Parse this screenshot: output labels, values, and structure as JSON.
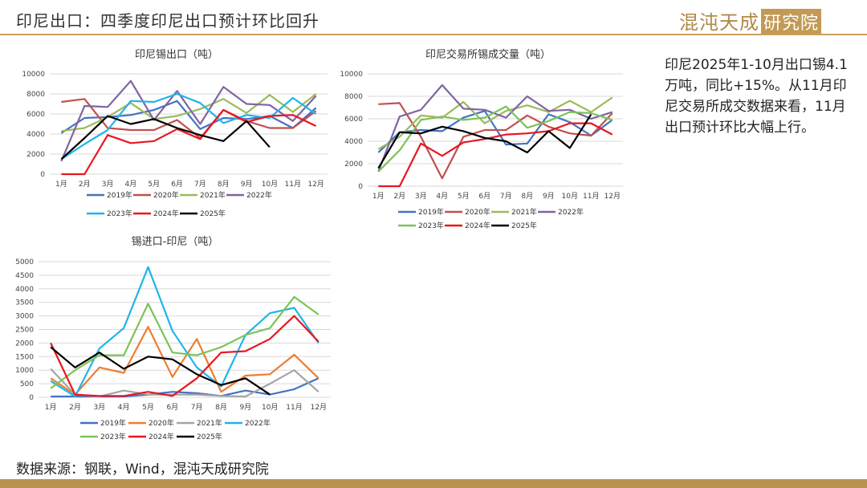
{
  "header": {
    "title": "印尼出口：四季度印尼出口预计环比回升",
    "logo_main": "混沌天成",
    "logo_box": "研究院"
  },
  "note": {
    "text": "印尼2025年1-10月出口锡4.1万吨，同比+15%。从11月印尼交易所成交数据来看，11月出口预计环比大幅上行。"
  },
  "source": "数据来源：钢联，Wind，混沌天成研究院",
  "colors": {
    "2019年": "#4472c4",
    "2020年": "#c0504d",
    "2021年": "#9bbb59",
    "2022年": "#8064a2",
    "2023年": "#1fb5e8",
    "2024年": "#e8171f",
    "2025年": "#000000",
    "2019年-b": "#4472c4",
    "2020年-b": "#c0504d",
    "2021年-b": "#9bbb59",
    "2022年-b": "#8064a2",
    "2023年-b": "#7cc35a",
    "2024年-b": "#e8171f",
    "2025年-b": "#000000",
    "2019年-c": "#4472c4",
    "2020年-c": "#ed7d31",
    "2021年-c": "#a5a5a5",
    "2022年-c": "#1fb5e8",
    "2023年-c": "#7cc35a",
    "2024年-c": "#e8171f",
    "2025年-c": "#000000"
  },
  "chart_data": [
    {
      "type": "line",
      "title": "印尼锡出口（吨）",
      "categories": [
        "1月",
        "2月",
        "3月",
        "4月",
        "5月",
        "6月",
        "7月",
        "8月",
        "9月",
        "10月",
        "11月",
        "12月"
      ],
      "ylim": [
        0,
        10000
      ],
      "yticks": [
        0,
        2000,
        4000,
        6000,
        8000,
        10000
      ],
      "legend": "bottom",
      "grid": true,
      "series": [
        {
          "name": "2019年",
          "color_key": "2019年",
          "values": [
            4100,
            5600,
            5700,
            5900,
            6400,
            7300,
            4500,
            5600,
            5500,
            5800,
            4600,
            6600
          ]
        },
        {
          "name": "2020年",
          "color_key": "2020年",
          "values": [
            7200,
            7500,
            4600,
            4400,
            4400,
            5400,
            3600,
            6400,
            5300,
            4600,
            4600,
            6300
          ]
        },
        {
          "name": "2021年",
          "color_key": "2021年",
          "values": [
            4300,
            4600,
            5700,
            7100,
            5500,
            5800,
            6500,
            7500,
            6100,
            7900,
            6200,
            8000
          ]
        },
        {
          "name": "2022年",
          "color_key": "2022年",
          "values": [
            1300,
            6800,
            6700,
            9300,
            5400,
            8300,
            5000,
            8700,
            7000,
            6900,
            5300,
            7800
          ]
        },
        {
          "name": "2023年",
          "color_key": "2023年",
          "values": [
            1500,
            3000,
            4400,
            7300,
            7200,
            8000,
            7100,
            5100,
            5900,
            5600,
            7600,
            6000
          ]
        },
        {
          "name": "2024年",
          "color_key": "2024年",
          "values": [
            0,
            0,
            3900,
            3100,
            3300,
            4500,
            3500,
            6400,
            5200,
            5800,
            5900,
            4800
          ]
        },
        {
          "name": "2025年",
          "color_key": "2025年",
          "values": [
            1500,
            3600,
            5800,
            5000,
            5500,
            4600,
            3900,
            3300,
            5300,
            2700,
            null,
            null
          ]
        }
      ]
    },
    {
      "type": "line",
      "title": "印尼交易所锡成交量（吨）",
      "categories": [
        "1月",
        "2月",
        "3月",
        "4月",
        "5月",
        "6月",
        "7月",
        "8月",
        "9月",
        "10月",
        "11月",
        "12月"
      ],
      "ylim": [
        0,
        10000
      ],
      "yticks": [
        0,
        2000,
        4000,
        6000,
        8000,
        10000
      ],
      "legend": "bottom",
      "grid": true,
      "series": [
        {
          "name": "2019年",
          "color_key": "2019年-b",
          "values": [
            3000,
            4800,
            5000,
            4900,
            6100,
            6700,
            3700,
            3800,
            6400,
            5700,
            4500,
            5900
          ]
        },
        {
          "name": "2020年",
          "color_key": "2020年-b",
          "values": [
            7300,
            7400,
            4400,
            700,
            4400,
            5000,
            5000,
            6300,
            5300,
            4700,
            4500,
            6500
          ]
        },
        {
          "name": "2021年",
          "color_key": "2021年-b",
          "values": [
            3300,
            4400,
            6300,
            6100,
            7500,
            5600,
            6700,
            7200,
            6600,
            7600,
            6600,
            7900
          ]
        },
        {
          "name": "2022年",
          "color_key": "2022年-b",
          "values": [
            1300,
            6200,
            6800,
            9000,
            6900,
            6800,
            6100,
            8000,
            6700,
            6800,
            6000,
            6600
          ]
        },
        {
          "name": "2023年",
          "color_key": "2023年-b",
          "values": [
            1300,
            3200,
            5900,
            6200,
            5900,
            6100,
            7100,
            5200,
            5800,
            6600,
            6500,
            5900
          ]
        },
        {
          "name": "2024年",
          "color_key": "2024年-b",
          "values": [
            0,
            0,
            3800,
            2700,
            3900,
            4200,
            4600,
            4700,
            4900,
            5600,
            5600,
            4600
          ]
        },
        {
          "name": "2025年",
          "color_key": "2025年-b",
          "values": [
            1600,
            4800,
            4700,
            5300,
            4900,
            4300,
            4000,
            3000,
            4900,
            3400,
            6400,
            null
          ]
        }
      ]
    },
    {
      "type": "line",
      "title": "锡进口-印尼（吨）",
      "categories": [
        "1月",
        "2月",
        "3月",
        "4月",
        "5月",
        "6月",
        "7月",
        "8月",
        "9月",
        "10月",
        "11月",
        "12月"
      ],
      "ylim": [
        0,
        5000
      ],
      "yticks": [
        0,
        500,
        1000,
        1500,
        2000,
        2500,
        3000,
        3500,
        4000,
        4500,
        5000
      ],
      "legend": "bottom",
      "grid": true,
      "series": [
        {
          "name": "2019年",
          "color_key": "2019年-c",
          "values": [
            30,
            30,
            30,
            30,
            100,
            200,
            150,
            50,
            250,
            100,
            300,
            700
          ]
        },
        {
          "name": "2020年",
          "color_key": "2020年-c",
          "values": [
            700,
            100,
            1100,
            900,
            2600,
            750,
            2150,
            200,
            800,
            850,
            1570,
            700
          ]
        },
        {
          "name": "2021年",
          "color_key": "2021年-c",
          "values": [
            1050,
            100,
            30,
            250,
            100,
            100,
            100,
            50,
            30,
            500,
            1000,
            200
          ]
        },
        {
          "name": "2022年",
          "color_key": "2022年-c",
          "values": [
            600,
            30,
            1800,
            2550,
            4800,
            2450,
            1100,
            400,
            2300,
            3100,
            3300,
            2000
          ]
        },
        {
          "name": "2023年",
          "color_key": "2023年-c",
          "values": [
            330,
            1000,
            1550,
            1550,
            3450,
            1650,
            1550,
            1850,
            2300,
            2550,
            3700,
            3050
          ]
        },
        {
          "name": "2024年",
          "color_key": "2024年-c",
          "values": [
            2000,
            100,
            50,
            50,
            200,
            50,
            700,
            1650,
            1700,
            2150,
            3000,
            2050
          ]
        },
        {
          "name": "2025年",
          "color_key": "2025年-c",
          "values": [
            1850,
            1100,
            1650,
            1050,
            1500,
            1400,
            850,
            450,
            700,
            100,
            null,
            null
          ]
        }
      ]
    }
  ]
}
